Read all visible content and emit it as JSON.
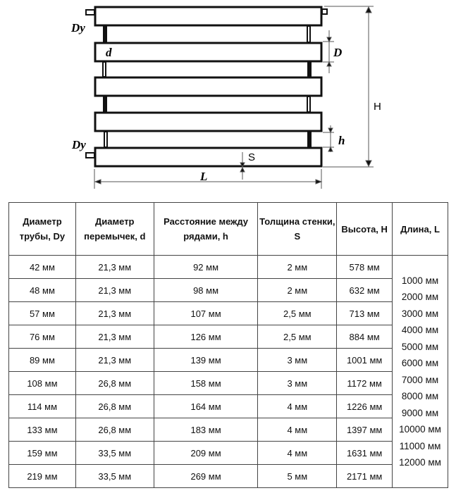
{
  "diagram": {
    "labels": {
      "dy_top": "Dy",
      "dy_bottom": "Dy",
      "d": "d",
      "D": "D",
      "H": "H",
      "h": "h",
      "S": "S",
      "L": "L"
    }
  },
  "table": {
    "headers": [
      "Диаметр трубы, Dy",
      "Диаметр перемычек, d",
      "Расстояние между рядами, h",
      "Толщина стенки, S",
      "Высота, H",
      "Длина, L"
    ],
    "rows": [
      [
        "42 мм",
        "21,3 мм",
        "92 мм",
        "2 мм",
        "578 мм"
      ],
      [
        "48 мм",
        "21,3 мм",
        "98 мм",
        "2 мм",
        "632 мм"
      ],
      [
        "57 мм",
        "21,3 мм",
        "107 мм",
        "2,5 мм",
        "713 мм"
      ],
      [
        "76 мм",
        "21,3 мм",
        "126 мм",
        "2,5 мм",
        "884 мм"
      ],
      [
        "89 мм",
        "21,3 мм",
        "139 мм",
        "3 мм",
        "1001 мм"
      ],
      [
        "108 мм",
        "26,8 мм",
        "158 мм",
        "3 мм",
        "1172 мм"
      ],
      [
        "114 мм",
        "26,8 мм",
        "164 мм",
        "4 мм",
        "1226 мм"
      ],
      [
        "133 мм",
        "26,8 мм",
        "183 мм",
        "4 мм",
        "1397 мм"
      ],
      [
        "159 мм",
        "33,5 мм",
        "209 мм",
        "4 мм",
        "1631 мм"
      ],
      [
        "219 мм",
        "33,5 мм",
        "269 мм",
        "5 мм",
        "2171 мм"
      ]
    ],
    "lengths": [
      "1000 мм",
      "2000 мм",
      "3000 мм",
      "4000 мм",
      "5000 мм",
      "6000 мм",
      "7000 мм",
      "8000 мм",
      "9000 мм",
      "10000 мм",
      "11000 мм",
      "12000 мм"
    ]
  }
}
